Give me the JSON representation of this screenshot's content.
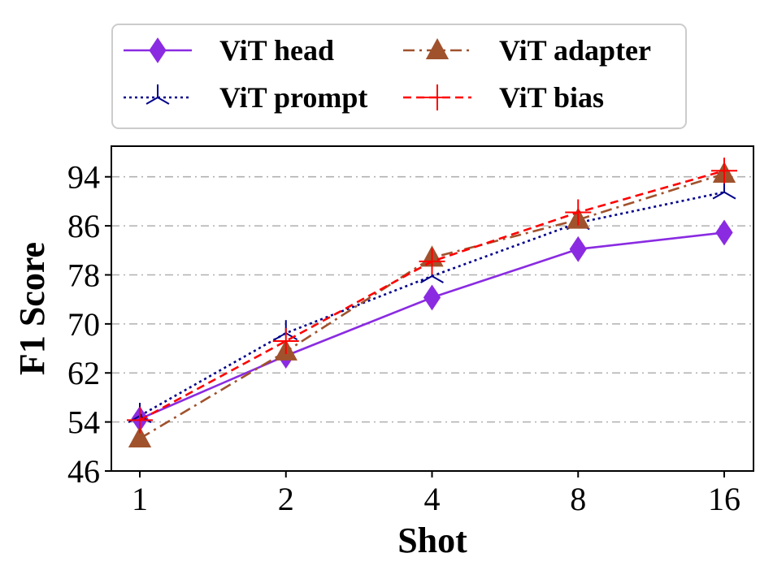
{
  "chart_data": {
    "type": "line",
    "title": "",
    "xlabel": "Shot",
    "ylabel": "F1 Score",
    "categories": [
      "1",
      "2",
      "4",
      "8",
      "16"
    ],
    "ylim": [
      46,
      99
    ],
    "yticks": [
      46,
      54,
      62,
      70,
      78,
      86,
      94
    ],
    "grid": "horizontal dash-dot",
    "legend_position": "top",
    "series": [
      {
        "name": "ViT head",
        "values": [
          54.5,
          64.8,
          74.3,
          82.2,
          84.9
        ],
        "color": "#8a2be2",
        "line": "solid",
        "marker": "thin-diamond"
      },
      {
        "name": "ViT prompt",
        "values": [
          55.0,
          68.5,
          77.8,
          86.5,
          91.5
        ],
        "color": "#00008b",
        "line": "dotted",
        "marker": "tri-up"
      },
      {
        "name": "ViT adapter",
        "values": [
          51.3,
          65.5,
          80.8,
          87.0,
          94.5
        ],
        "color": "#a0522d",
        "line": "dash-dot",
        "marker": "triangle"
      },
      {
        "name": "ViT bias",
        "values": [
          54.3,
          67.2,
          80.2,
          88.2,
          95.0
        ],
        "color": "#ff0000",
        "line": "dashed",
        "marker": "plus"
      }
    ]
  }
}
